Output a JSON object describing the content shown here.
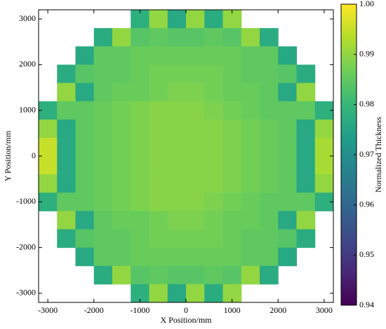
{
  "chart_data": {
    "type": "heatmap",
    "xlabel": "X Position/mm",
    "ylabel": "Y Position/mm",
    "colorbar_label": "Normalized Thickness",
    "colormap": "viridis",
    "x": [
      -3000,
      -2600,
      -2200,
      -1800,
      -1400,
      -1000,
      -600,
      -200,
      200,
      600,
      1000,
      1400,
      1800,
      2200,
      2600,
      3000
    ],
    "y": [
      3000,
      2600,
      2200,
      1800,
      1400,
      1000,
      600,
      200,
      -200,
      -600,
      -1000,
      -1400,
      -1800,
      -2200,
      -2600,
      -3000
    ],
    "values": [
      [
        null,
        null,
        null,
        null,
        null,
        0.978,
        0.99,
        0.976,
        0.99,
        0.977,
        0.99,
        null,
        null,
        null,
        null,
        null
      ],
      [
        null,
        null,
        null,
        0.977,
        0.99,
        0.984,
        0.985,
        0.984,
        0.984,
        0.985,
        0.984,
        0.99,
        0.977,
        null,
        null,
        null
      ],
      [
        null,
        null,
        0.976,
        0.985,
        0.985,
        0.986,
        0.986,
        0.986,
        0.986,
        0.986,
        0.986,
        0.985,
        0.985,
        0.976,
        null,
        null
      ],
      [
        null,
        0.977,
        0.984,
        0.985,
        0.985,
        0.986,
        0.987,
        0.987,
        0.987,
        0.987,
        0.986,
        0.985,
        0.985,
        0.984,
        0.977,
        null
      ],
      [
        null,
        0.99,
        0.976,
        0.985,
        0.986,
        0.986,
        0.987,
        0.988,
        0.988,
        0.987,
        0.986,
        0.986,
        0.985,
        0.976,
        0.99,
        null
      ],
      [
        0.978,
        0.985,
        0.985,
        0.986,
        0.987,
        0.988,
        0.989,
        0.989,
        0.989,
        0.988,
        0.987,
        0.986,
        0.985,
        0.985,
        0.985,
        0.978
      ],
      [
        0.99,
        0.976,
        0.985,
        0.986,
        0.987,
        0.988,
        0.989,
        0.989,
        0.989,
        0.989,
        0.988,
        0.987,
        0.986,
        0.985,
        0.976,
        0.99
      ],
      [
        0.995,
        0.976,
        0.985,
        0.986,
        0.987,
        0.988,
        0.989,
        0.989,
        0.989,
        0.989,
        0.988,
        0.987,
        0.986,
        0.985,
        0.976,
        0.992
      ],
      [
        0.995,
        0.976,
        0.985,
        0.986,
        0.987,
        0.988,
        0.989,
        0.989,
        0.989,
        0.989,
        0.988,
        0.987,
        0.986,
        0.985,
        0.976,
        0.992
      ],
      [
        0.99,
        0.976,
        0.985,
        0.986,
        0.987,
        0.988,
        0.989,
        0.989,
        0.989,
        0.989,
        0.988,
        0.987,
        0.986,
        0.985,
        0.976,
        0.99
      ],
      [
        0.978,
        0.985,
        0.985,
        0.986,
        0.987,
        0.988,
        0.989,
        0.989,
        0.989,
        0.988,
        0.987,
        0.986,
        0.985,
        0.985,
        0.985,
        0.978
      ],
      [
        null,
        0.99,
        0.976,
        0.985,
        0.986,
        0.986,
        0.987,
        0.988,
        0.988,
        0.987,
        0.986,
        0.986,
        0.985,
        0.976,
        0.99,
        null
      ],
      [
        null,
        0.977,
        0.984,
        0.985,
        0.985,
        0.986,
        0.987,
        0.987,
        0.987,
        0.987,
        0.986,
        0.985,
        0.985,
        0.984,
        0.977,
        null
      ],
      [
        null,
        null,
        0.976,
        0.985,
        0.985,
        0.986,
        0.986,
        0.986,
        0.986,
        0.986,
        0.986,
        0.985,
        0.985,
        0.976,
        null,
        null
      ],
      [
        null,
        null,
        null,
        0.977,
        0.99,
        0.984,
        0.985,
        0.984,
        0.984,
        0.985,
        0.984,
        0.99,
        0.977,
        null,
        null,
        null
      ],
      [
        null,
        null,
        null,
        null,
        null,
        0.978,
        0.99,
        0.976,
        0.99,
        0.977,
        0.99,
        null,
        null,
        null,
        null,
        null
      ]
    ],
    "xlim": [
      -3200,
      3200
    ],
    "ylim": [
      -3200,
      3200
    ],
    "xticks": [
      -3000,
      -2000,
      -1000,
      0,
      1000,
      2000,
      3000
    ],
    "yticks": [
      -3000,
      -2000,
      -1000,
      0,
      1000,
      2000,
      3000
    ],
    "clim": [
      0.94,
      1.0
    ],
    "cticks": [
      {
        "value": 0.94,
        "label": "0.94"
      },
      {
        "value": 0.95,
        "label": "0.95"
      },
      {
        "value": 0.96,
        "label": "0.96"
      },
      {
        "value": 0.97,
        "label": "0.97"
      },
      {
        "value": 0.98,
        "label": "0.98"
      },
      {
        "value": 0.99,
        "label": "0.99"
      },
      {
        "value": 1.0,
        "label": "1.00"
      }
    ]
  }
}
